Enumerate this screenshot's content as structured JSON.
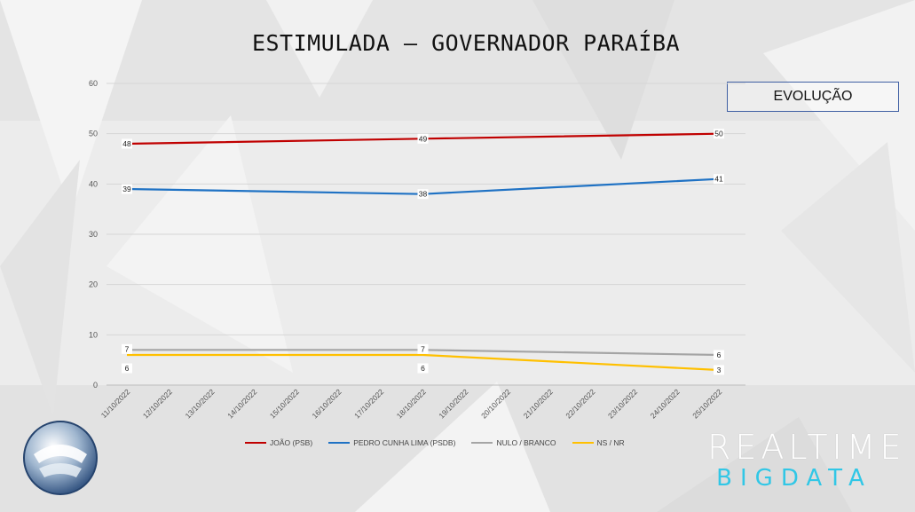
{
  "title": "ESTIMULADA – GOVERNADOR PARAÍBA",
  "badge": "EVOLUÇÃO",
  "brand": {
    "line1": "REALTIME",
    "line2": "BIGDATA",
    "accent": "#31c7e6"
  },
  "chart_data": {
    "type": "line",
    "title": "ESTIMULADA – GOVERNADOR PARAÍBA",
    "xlabel": "",
    "ylabel": "",
    "ylim": [
      0,
      60
    ],
    "yticks": [
      0,
      10,
      20,
      30,
      40,
      50,
      60
    ],
    "grid": true,
    "legend_position": "bottom",
    "x": [
      "11/10/2022",
      "12/10/2022",
      "13/10/2022",
      "14/10/2022",
      "15/10/2022",
      "16/10/2022",
      "17/10/2022",
      "18/10/2022",
      "19/10/2022",
      "20/10/2022",
      "21/10/2022",
      "22/10/2022",
      "23/10/2022",
      "24/10/2022",
      "25/10/2022"
    ],
    "series": [
      {
        "name": "JOÃO (PSB)",
        "color": "#c00000",
        "points": [
          {
            "x": "11/10/2022",
            "y": 48
          },
          {
            "x": "18/10/2022",
            "y": 49
          },
          {
            "x": "25/10/2022",
            "y": 50
          }
        ],
        "labels": [
          "48",
          "49",
          "50"
        ]
      },
      {
        "name": "PEDRO CUNHA LIMA (PSDB)",
        "color": "#1f72c4",
        "points": [
          {
            "x": "11/10/2022",
            "y": 39
          },
          {
            "x": "18/10/2022",
            "y": 38
          },
          {
            "x": "25/10/2022",
            "y": 41
          }
        ],
        "labels": [
          "39",
          "38",
          "41"
        ]
      },
      {
        "name": "NULO / BRANCO",
        "color": "#a5a5a5",
        "points": [
          {
            "x": "11/10/2022",
            "y": 7
          },
          {
            "x": "18/10/2022",
            "y": 7
          },
          {
            "x": "25/10/2022",
            "y": 6
          }
        ],
        "labels": [
          "7",
          "7",
          "6"
        ]
      },
      {
        "name": "NS / NR",
        "color": "#ffc000",
        "points": [
          {
            "x": "11/10/2022",
            "y": 6
          },
          {
            "x": "18/10/2022",
            "y": 6
          },
          {
            "x": "25/10/2022",
            "y": 3
          }
        ],
        "labels": [
          "6",
          "6",
          "3"
        ]
      }
    ]
  }
}
